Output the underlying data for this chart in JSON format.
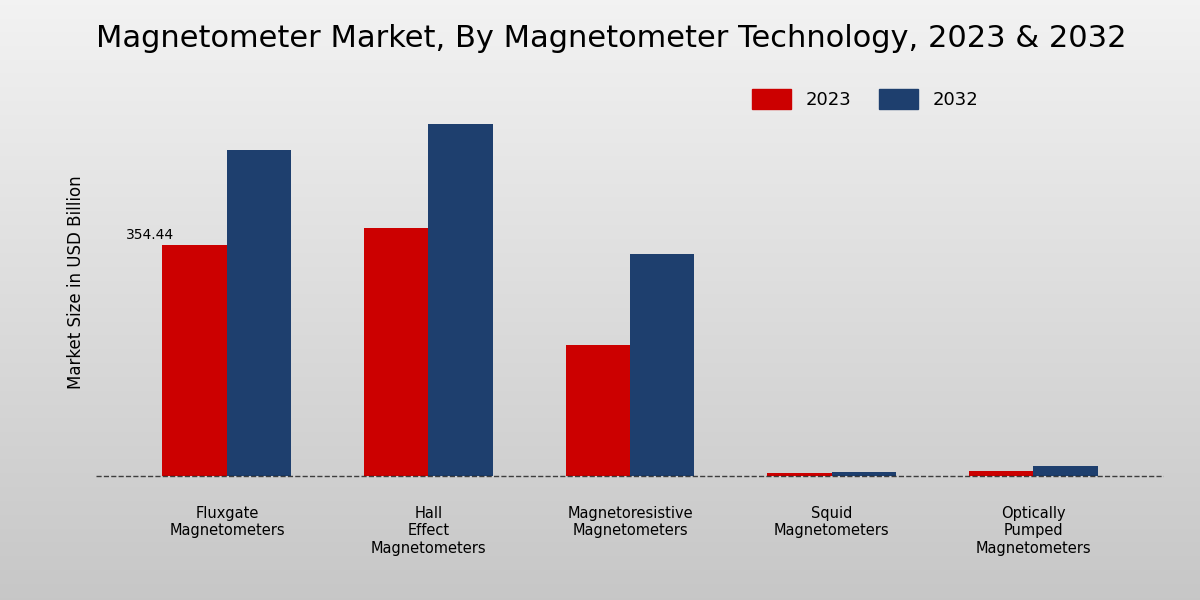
{
  "title": "Magnetometer Market, By Magnetometer Technology, 2023 & 2032",
  "ylabel": "Market Size in USD Billion",
  "categories": [
    "Fluxgate\nMagnetometers",
    "Hall\nEffect\nMagnetometers",
    "Magnetoresistive\nMagnetometers",
    "Squid\nMagnetometers",
    "Optically\nPumped\nMagnetometers"
  ],
  "values_2023": [
    354.44,
    380.0,
    200.0,
    3.5,
    7.0
  ],
  "values_2032": [
    500.0,
    540.0,
    340.0,
    5.0,
    15.0
  ],
  "color_2023": "#cc0000",
  "color_2032": "#1e3f6e",
  "bar_width": 0.32,
  "annotation_text": "354.44",
  "background_top": "#c8c8c8",
  "background_bottom": "#f0f0f0",
  "legend_labels": [
    "2023",
    "2032"
  ],
  "title_fontsize": 22,
  "axis_label_fontsize": 12,
  "tick_label_fontsize": 10.5,
  "legend_fontsize": 13,
  "annotation_fontsize": 10,
  "dashed_line_y": 0,
  "ylim": [
    -25,
    620
  ]
}
